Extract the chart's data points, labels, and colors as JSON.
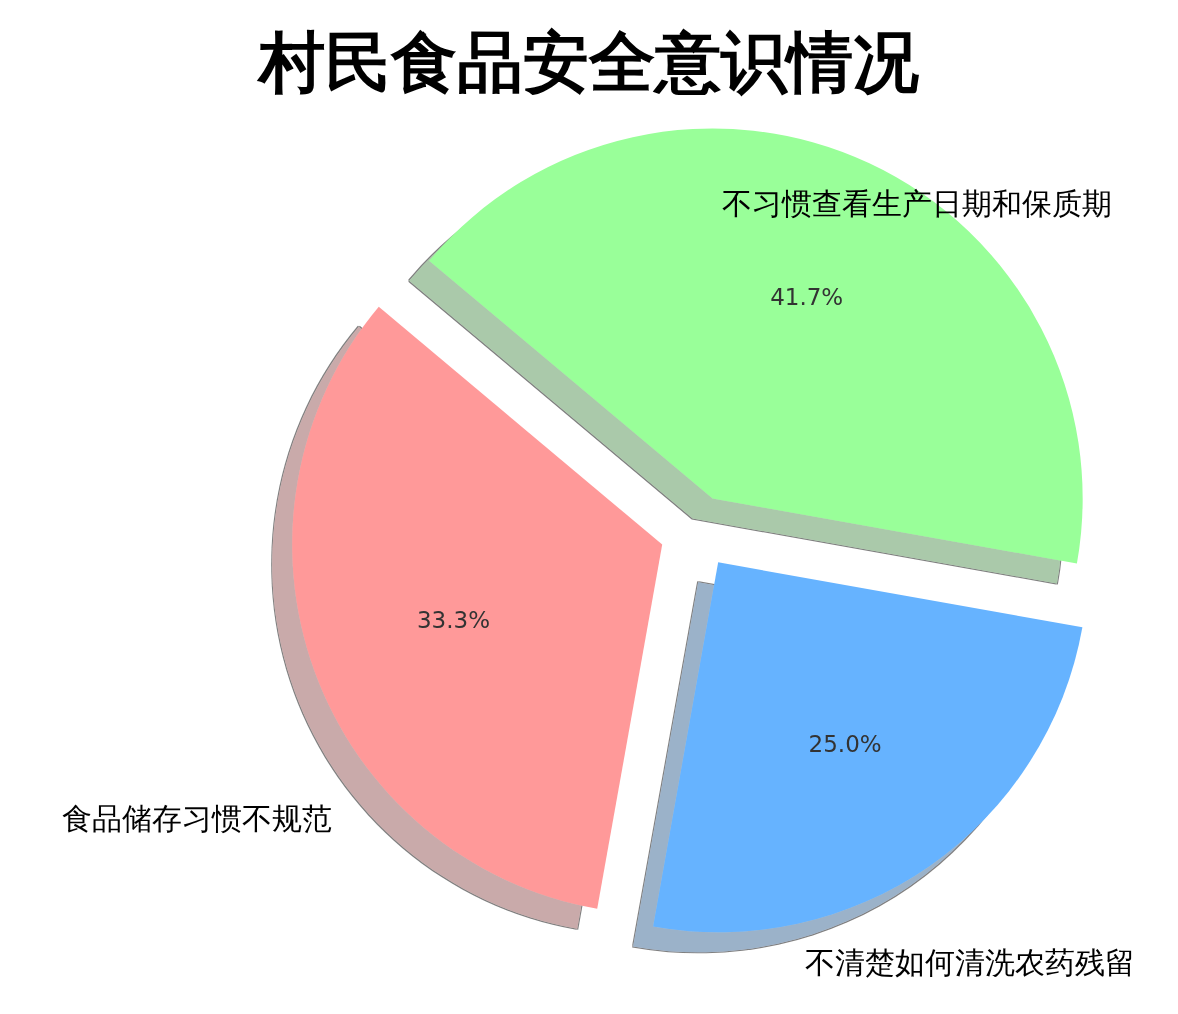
{
  "chart_data": {
    "type": "pie",
    "title": "村民食品安全意识情况",
    "categories": [
      "食品储存习惯不规范",
      "不清楚如何清洗农药残留",
      "不习惯查看生产日期和保质期"
    ],
    "values": [
      33.3,
      25.0,
      41.7
    ],
    "colors": [
      "#ff9999",
      "#66b3ff",
      "#99ff99"
    ],
    "value_labels": [
      "33.3%",
      "25.0%",
      "41.7%"
    ]
  }
}
